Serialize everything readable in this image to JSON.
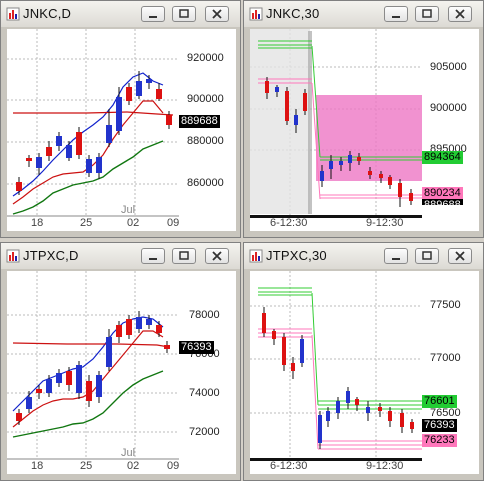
{
  "windows": [
    {
      "title": "JNKC,D",
      "y_ticks": [
        "920000",
        "900000",
        "880000",
        "860000"
      ],
      "price_tag": "889688",
      "x_labels": [
        "18",
        "25",
        "02",
        "09"
      ],
      "month_label": "Jul"
    },
    {
      "title": "JNKC,30",
      "y_ticks": [
        "905000",
        "900000",
        "895000"
      ],
      "tags": [
        "894364",
        "890234",
        "889688"
      ],
      "x_labels": [
        "6-12:30",
        "9-12:30"
      ]
    },
    {
      "title": "JTPXC,D",
      "y_ticks": [
        "78000",
        "76000",
        "74000",
        "72000"
      ],
      "price_tag": "76393",
      "x_labels": [
        "18",
        "25",
        "02",
        "09"
      ],
      "month_label": "Jul"
    },
    {
      "title": "JTPXC,30",
      "y_ticks": [
        "77500",
        "77000",
        "76500"
      ],
      "tags": [
        "76601",
        "76393",
        "76233"
      ],
      "x_labels": [
        "6-12:30",
        "9-12:30"
      ]
    }
  ],
  "colors": {
    "bull": "#2233cc",
    "bear": "#cc1111",
    "green_tag": "#22cc33",
    "pink_tag": "#ff77bb",
    "black_tag": "#000000",
    "zone": "#ee77c4"
  },
  "icons": {
    "window": "chart-window-icon",
    "minimize": "minimize-icon",
    "restore": "restore-icon",
    "close": "close-icon"
  }
}
